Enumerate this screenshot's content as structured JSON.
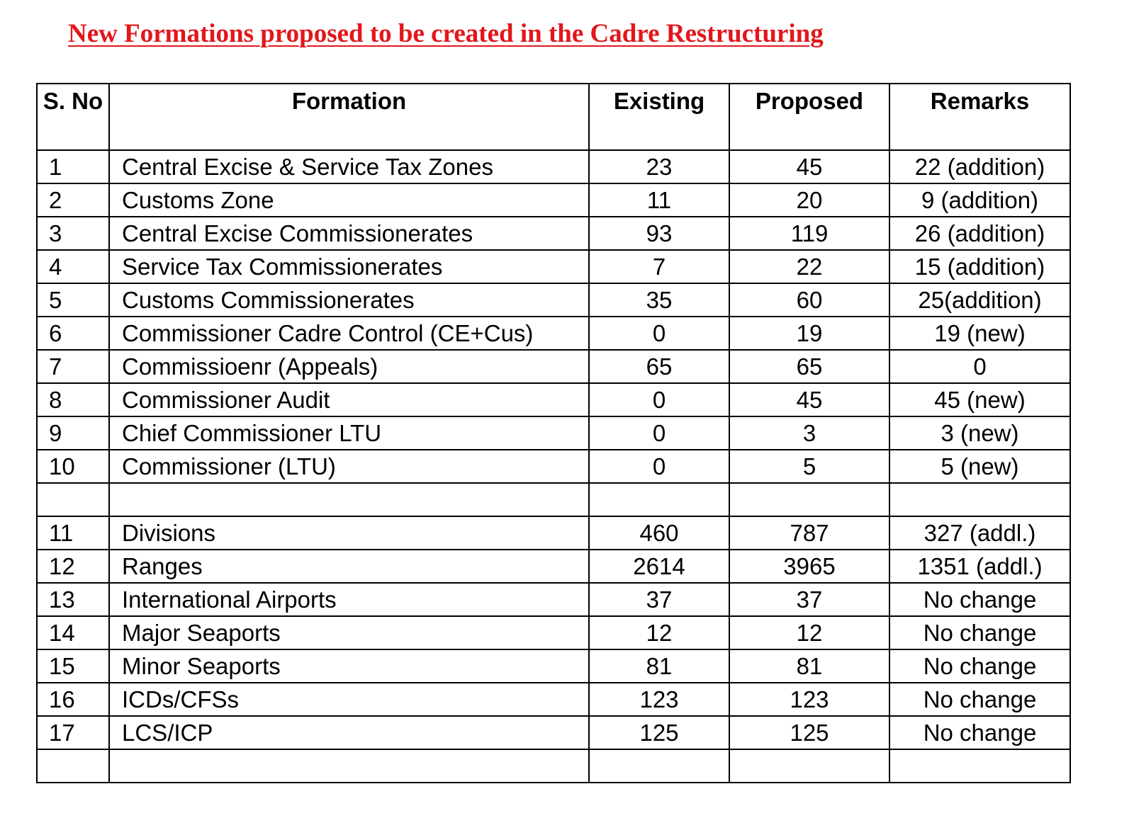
{
  "title": "New Formations proposed to be created in the Cadre Restructuring",
  "colors": {
    "title": "#e3161b"
  },
  "table": {
    "headers": [
      "S. No",
      "Formation",
      "Existing",
      "Proposed",
      "Remarks"
    ],
    "rows": [
      [
        "1",
        "Central Excise & Service Tax Zones",
        "23",
        "45",
        "22 (addition)"
      ],
      [
        "2",
        "Customs Zone",
        "11",
        "20",
        "9 (addition)"
      ],
      [
        "3",
        "Central Excise Commissionerates",
        "93",
        "119",
        "26 (addition)"
      ],
      [
        "4",
        "Service Tax Commissionerates",
        "7",
        "22",
        "15 (addition)"
      ],
      [
        "5",
        "Customs Commissionerates",
        "35",
        "60",
        "25(addition)"
      ],
      [
        "6",
        "Commissioner Cadre Control (CE+Cus)",
        "0",
        "19",
        "19 (new)"
      ],
      [
        "7",
        "Commissioenr (Appeals)",
        "65",
        "65",
        "0"
      ],
      [
        "8",
        "Commissioner Audit",
        "0",
        "45",
        "45 (new)"
      ],
      [
        "9",
        "Chief Commissioner LTU",
        "0",
        "3",
        "3 (new)"
      ],
      [
        "10",
        "Commissioner (LTU)",
        "0",
        "5",
        "5 (new)"
      ],
      [
        "",
        "",
        "",
        "",
        ""
      ],
      [
        "11",
        "Divisions",
        "460",
        "787",
        "327 (addl.)"
      ],
      [
        "12",
        "Ranges",
        "2614",
        "3965",
        "1351 (addl.)"
      ],
      [
        "13",
        "International Airports",
        "37",
        "37",
        "No change"
      ],
      [
        "14",
        "Major Seaports",
        "12",
        "12",
        "No change"
      ],
      [
        "15",
        "Minor Seaports",
        "81",
        "81",
        "No change"
      ],
      [
        "16",
        "ICDs/CFSs",
        "123",
        "123",
        "No change"
      ],
      [
        "17",
        "LCS/ICP",
        "125",
        "125",
        "No change"
      ],
      [
        "",
        "",
        "",
        "",
        ""
      ]
    ]
  }
}
